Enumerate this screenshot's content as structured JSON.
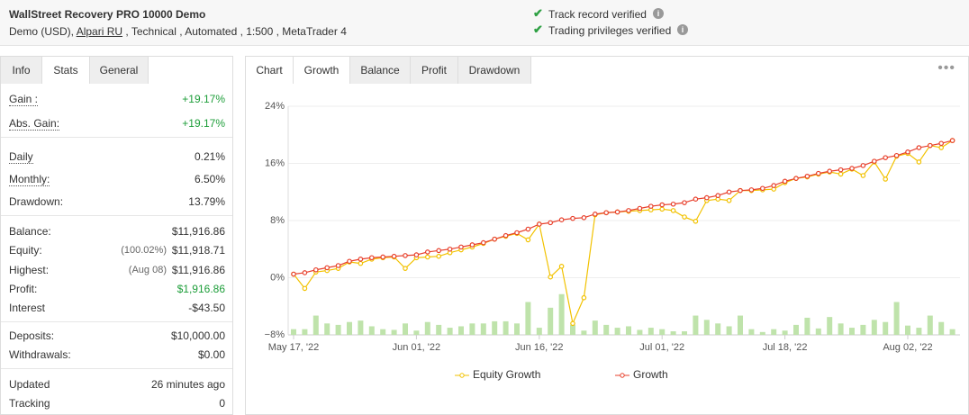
{
  "header": {
    "title": "WallStreet Recovery PRO 10000 Demo",
    "sub_before": "Demo (USD),",
    "broker": "Alpari RU",
    "sub_after": ", Technical , Automated , 1:500 , MetaTrader 4",
    "verified": [
      "Track record verified",
      "Trading privileges verified"
    ]
  },
  "tabs": [
    "Info",
    "Stats",
    "General"
  ],
  "stats": [
    [
      {
        "label": "Gain :",
        "value": "+19.17%",
        "color": "#1e9e3a"
      },
      {
        "label": "Abs. Gain:",
        "value": "+19.17%",
        "color": "#1e9e3a"
      }
    ],
    [
      {
        "label": "Daily",
        "value": "0.21%"
      },
      {
        "label": "Monthly:",
        "value": "6.50%"
      },
      {
        "label": "Drawdown:",
        "value": "13.79%"
      }
    ],
    [
      {
        "label": "Balance:",
        "value": "$11,916.86"
      },
      {
        "label": "Equity:",
        "note": "(100.02%)",
        "value": "$11,918.71"
      },
      {
        "label": "Highest:",
        "note": "(Aug 08)",
        "value": "$11,916.86"
      },
      {
        "label": "Profit:",
        "value": "$1,916.86",
        "color": "#1e9e3a"
      },
      {
        "label": "Interest",
        "value": "-$43.50"
      }
    ],
    [
      {
        "label": "Deposits:",
        "value": "$10,000.00"
      },
      {
        "label": "Withdrawals:",
        "value": "$0.00"
      }
    ],
    [
      {
        "label": "Updated",
        "value": "26 minutes ago"
      },
      {
        "label": "Tracking",
        "value": "0"
      }
    ]
  ],
  "chart_tabs": [
    "Chart",
    "Growth",
    "Balance",
    "Profit",
    "Drawdown"
  ],
  "chart_data": {
    "type": "line",
    "categories": [
      "May 17, '22",
      null,
      null,
      null,
      null,
      null,
      null,
      null,
      null,
      null,
      null,
      "Jun 01, '22",
      null,
      null,
      null,
      null,
      null,
      null,
      null,
      null,
      null,
      null,
      "Jun 16, '22",
      null,
      null,
      null,
      null,
      null,
      null,
      null,
      null,
      null,
      null,
      "Jul 01, '22",
      null,
      null,
      null,
      null,
      null,
      null,
      null,
      null,
      null,
      null,
      "Jul 18, '22",
      null,
      null,
      null,
      null,
      null,
      null,
      null,
      null,
      null,
      null,
      "Aug 02, '22",
      null,
      null,
      null,
      null
    ],
    "ylim": [
      -8,
      24
    ],
    "yticks": [
      {
        "value": -8,
        "label": "−8%"
      },
      {
        "value": 0,
        "label": "0%"
      },
      {
        "value": 8,
        "label": "8%"
      },
      {
        "value": 16,
        "label": "16%"
      },
      {
        "value": 24,
        "label": "24%"
      }
    ],
    "series": [
      {
        "name": "Equity Growth",
        "color": "#f2c200",
        "values": [
          0.5,
          -1.5,
          0.8,
          1.0,
          1.3,
          2.2,
          2.0,
          2.6,
          2.8,
          2.9,
          1.3,
          2.8,
          2.9,
          3.0,
          3.5,
          3.9,
          4.3,
          4.8,
          5.4,
          5.8,
          6.2,
          5.3,
          7.5,
          0.1,
          1.6,
          -6.4,
          -2.8,
          8.8,
          9.1,
          9.2,
          9.3,
          9.4,
          9.5,
          9.6,
          9.4,
          8.5,
          7.9,
          10.8,
          11.0,
          10.8,
          12.2,
          12.2,
          12.3,
          12.4,
          13.3,
          13.9,
          14.1,
          14.5,
          14.8,
          14.5,
          15.2,
          14.3,
          16.2,
          13.8,
          17.0,
          17.4,
          16.2,
          18.5,
          18.2,
          19.2
        ]
      },
      {
        "name": "Growth",
        "color": "#e8412d",
        "values": [
          0.5,
          0.7,
          1.1,
          1.4,
          1.7,
          2.3,
          2.6,
          2.8,
          2.9,
          3.0,
          3.1,
          3.2,
          3.6,
          3.8,
          4.0,
          4.3,
          4.6,
          4.9,
          5.4,
          5.9,
          6.3,
          6.8,
          7.5,
          7.7,
          8.1,
          8.3,
          8.4,
          8.9,
          9.1,
          9.2,
          9.4,
          9.7,
          10.0,
          10.2,
          10.3,
          10.5,
          11.0,
          11.2,
          11.5,
          12.0,
          12.2,
          12.3,
          12.5,
          12.9,
          13.5,
          13.9,
          14.2,
          14.6,
          14.9,
          15.1,
          15.3,
          15.7,
          16.3,
          16.8,
          17.1,
          17.6,
          18.2,
          18.5,
          18.8,
          19.2
        ]
      }
    ],
    "bars": {
      "color": "#bfe3ab",
      "values": [
        -7.2,
        -7.2,
        -5.3,
        -6.4,
        -6.6,
        -6.2,
        -6.0,
        -6.8,
        -7.2,
        -7.3,
        -6.4,
        -7.4,
        -6.2,
        -6.6,
        -7.0,
        -6.8,
        -6.4,
        -6.4,
        -6.1,
        -6.1,
        -6.4,
        -3.4,
        -7.0,
        -4.2,
        -2.3,
        -6.6,
        -7.4,
        -6.0,
        -6.6,
        -7.0,
        -6.8,
        -7.3,
        -7.0,
        -7.2,
        -7.5,
        -7.5,
        -5.3,
        -5.9,
        -6.4,
        -6.8,
        -5.3,
        -7.2,
        -7.6,
        -7.2,
        -7.4,
        -6.6,
        -5.6,
        -7.1,
        -5.5,
        -6.4,
        -7.0,
        -6.6,
        -5.9,
        -6.2,
        -3.4,
        -6.7,
        -7.0,
        -5.3,
        -6.2,
        -7.2
      ]
    },
    "grid": true
  }
}
